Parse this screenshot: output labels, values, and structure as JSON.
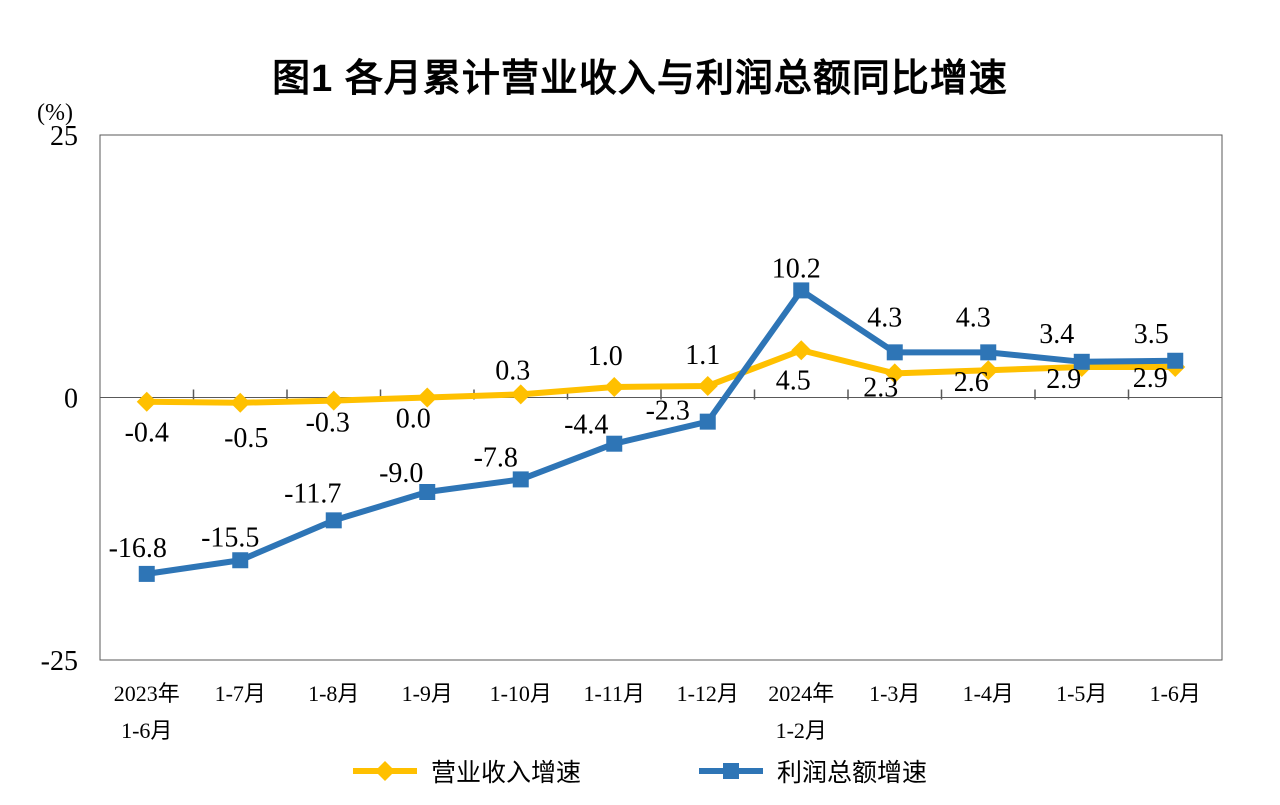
{
  "chart_data": {
    "type": "line",
    "title": "图1  各月累计营业收入与利润总额同比增速",
    "ylabel": "(%)",
    "ylim": [
      -25,
      25
    ],
    "yticks": [
      25,
      0,
      -25
    ],
    "grid": false,
    "legend_position": "bottom",
    "axis_color": "#595959",
    "text_color": "#000000",
    "categories": [
      [
        "2023年",
        "1-6月"
      ],
      [
        "1-7月"
      ],
      [
        "1-8月"
      ],
      [
        "1-9月"
      ],
      [
        "1-10月"
      ],
      [
        "1-11月"
      ],
      [
        "1-12月"
      ],
      [
        "2024年",
        "1-2月"
      ],
      [
        "1-3月"
      ],
      [
        "1-4月"
      ],
      [
        "1-5月"
      ],
      [
        "1-6月"
      ]
    ],
    "series": [
      {
        "name": "营业收入增速",
        "color": "#FFC000",
        "marker": "diamond",
        "values": [
          -0.4,
          -0.5,
          -0.3,
          0.0,
          0.3,
          1.0,
          1.1,
          4.5,
          2.3,
          2.6,
          2.9,
          2.9
        ]
      },
      {
        "name": "利润总额增速",
        "color": "#2E75B6",
        "marker": "square",
        "values": [
          -16.8,
          -15.5,
          -11.7,
          -9.0,
          -7.8,
          -4.4,
          -2.3,
          10.2,
          4.3,
          4.3,
          3.4,
          3.5
        ]
      }
    ]
  }
}
